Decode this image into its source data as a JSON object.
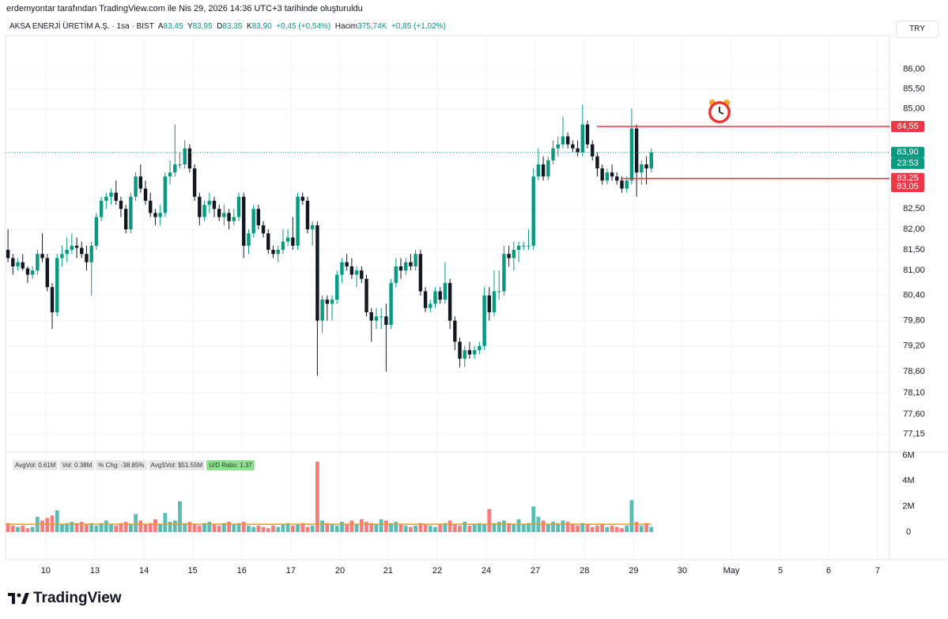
{
  "header": {
    "credit": "erdemyontar tarafından TradingView.com ile Nis 29, 2026 14:36 UTC+3 tarihinde oluşturuldu",
    "symbol": "AKSA ENERJİ ÜRETİM A.Ş. · 1sa · BIST",
    "open_label": "A",
    "open": "83,45",
    "high_label": "Y",
    "high": "83,95",
    "low_label": "D",
    "low": "83,35",
    "close_label": "K",
    "close": "83,90",
    "change": "+0,45 (+0,54%)",
    "volume_label": "Hacim",
    "volume": "375,74K",
    "volume_change": "+0,85 (+1,02%)",
    "currency": "TRY",
    "brand": "TradingView"
  },
  "indicator": [
    "AvgVol: 0.61M",
    "Vol: 0.38M",
    "% Chg: -38.85%",
    "AvgSVol: $51.55M",
    "U/D Ratio: 1.37"
  ],
  "chart_data": {
    "type": "candlestick",
    "log_scale": true,
    "grid": true,
    "up_color": "#089981",
    "down_color": "#131722",
    "volume_up_color": "#26a69a",
    "volume_down_color": "#ef5350",
    "volume_ma_color": "#ff9800",
    "xlim": [
      -0.5,
      179.5
    ],
    "xticks": [
      {
        "value": 7.7,
        "label": "10"
      },
      {
        "value": 17.7,
        "label": "13"
      },
      {
        "value": 27.7,
        "label": "14"
      },
      {
        "value": 37.6,
        "label": "15"
      },
      {
        "value": 47.6,
        "label": "16"
      },
      {
        "value": 57.6,
        "label": "17"
      },
      {
        "value": 67.6,
        "label": "20"
      },
      {
        "value": 77.4,
        "label": "21"
      },
      {
        "value": 87.4,
        "label": "22"
      },
      {
        "value": 97.4,
        "label": "24"
      },
      {
        "value": 107.4,
        "label": "27"
      },
      {
        "value": 117.4,
        "label": "28"
      },
      {
        "value": 127.4,
        "label": "29"
      },
      {
        "value": 137.3,
        "label": "30"
      },
      {
        "value": 147.3,
        "label": "May"
      },
      {
        "value": 157.3,
        "label": "5"
      },
      {
        "value": 167.1,
        "label": "6"
      },
      {
        "value": 177.1,
        "label": "7"
      }
    ],
    "ylim": [
      76.77,
      86.87
    ],
    "yticks": [
      {
        "value": 86,
        "label": "86,00"
      },
      {
        "value": 85.5,
        "label": "85,50"
      },
      {
        "value": 85,
        "label": "85,00"
      },
      {
        "value": 82.5,
        "label": "82,50"
      },
      {
        "value": 82,
        "label": "82,00"
      },
      {
        "value": 81.5,
        "label": "81,50"
      },
      {
        "value": 81,
        "label": "81,00"
      },
      {
        "value": 80.4,
        "label": "80,40"
      },
      {
        "value": 79.8,
        "label": "79,80"
      },
      {
        "value": 79.2,
        "label": "79,20"
      },
      {
        "value": 78.6,
        "label": "78,60"
      },
      {
        "value": 78.1,
        "label": "78,10"
      },
      {
        "value": 77.6,
        "label": "77,60"
      },
      {
        "value": 77.15,
        "label": "77,15"
      }
    ],
    "volume_ylim": [
      0,
      6
    ],
    "volume_ticks": [
      0,
      {
        "value": 2,
        "label": "2M"
      },
      {
        "value": 4,
        "label": "4M"
      },
      {
        "value": 6,
        "label": "6M"
      }
    ],
    "volume_ma": 0.61,
    "last_price": {
      "value": 83.9,
      "label": "83,90",
      "countdown": "23:53"
    },
    "alert_lines": [
      {
        "value": 84.55,
        "label": "84,55"
      },
      {
        "value": 83.25,
        "label": "83,25"
      }
    ],
    "alert_tags": [
      {
        "value": 83.05,
        "label": "83,05"
      }
    ],
    "ohlc": [
      [
        81.5,
        82.0,
        81.2,
        81.3
      ],
      [
        81.3,
        81.4,
        80.9,
        81.1
      ],
      [
        81.1,
        81.3,
        81.0,
        81.2
      ],
      [
        81.2,
        81.4,
        81.0,
        81.05
      ],
      [
        81.05,
        81.1,
        80.7,
        80.9
      ],
      [
        80.9,
        81.1,
        80.8,
        81.0
      ],
      [
        81.0,
        81.5,
        80.9,
        81.4
      ],
      [
        81.4,
        81.9,
        81.2,
        81.3
      ],
      [
        81.3,
        81.4,
        80.5,
        80.6
      ],
      [
        80.6,
        80.7,
        79.6,
        80.0
      ],
      [
        80.0,
        81.4,
        79.9,
        81.3
      ],
      [
        81.3,
        81.6,
        81.1,
        81.4
      ],
      [
        81.4,
        81.8,
        81.2,
        81.5
      ],
      [
        81.5,
        81.9,
        81.4,
        81.6
      ],
      [
        81.6,
        81.8,
        81.3,
        81.55
      ],
      [
        81.55,
        81.7,
        81.3,
        81.4
      ],
      [
        81.4,
        81.6,
        81.0,
        81.2
      ],
      [
        81.2,
        81.7,
        80.4,
        81.6
      ],
      [
        81.6,
        82.4,
        81.5,
        82.3
      ],
      [
        82.3,
        82.8,
        82.2,
        82.7
      ],
      [
        82.7,
        82.9,
        82.5,
        82.8
      ],
      [
        82.8,
        83.0,
        82.6,
        82.9
      ],
      [
        82.9,
        83.2,
        82.6,
        82.7
      ],
      [
        82.7,
        82.8,
        82.3,
        82.5
      ],
      [
        82.5,
        82.6,
        81.9,
        82.0
      ],
      [
        82.0,
        82.9,
        81.9,
        82.8
      ],
      [
        82.8,
        83.4,
        82.7,
        83.3
      ],
      [
        83.3,
        83.6,
        82.9,
        83.0
      ],
      [
        83.0,
        83.2,
        82.6,
        82.7
      ],
      [
        82.7,
        82.9,
        82.3,
        82.4
      ],
      [
        82.4,
        82.5,
        82.1,
        82.3
      ],
      [
        82.3,
        82.6,
        82.1,
        82.4
      ],
      [
        82.4,
        83.4,
        82.3,
        83.3
      ],
      [
        83.3,
        83.7,
        83.1,
        83.4
      ],
      [
        83.4,
        84.6,
        83.3,
        83.6
      ],
      [
        83.6,
        83.9,
        83.5,
        83.6
      ],
      [
        83.6,
        84.2,
        83.5,
        84.0
      ],
      [
        84.0,
        84.1,
        83.4,
        83.5
      ],
      [
        83.5,
        83.6,
        82.7,
        82.8
      ],
      [
        82.8,
        82.9,
        82.1,
        82.3
      ],
      [
        82.3,
        82.7,
        82.2,
        82.6
      ],
      [
        82.6,
        82.9,
        82.4,
        82.7
      ],
      [
        82.7,
        82.8,
        82.3,
        82.5
      ],
      [
        82.5,
        82.6,
        82.2,
        82.3
      ],
      [
        82.3,
        82.6,
        82.1,
        82.4
      ],
      [
        82.4,
        82.5,
        82.0,
        82.2
      ],
      [
        82.2,
        82.5,
        82.1,
        82.3
      ],
      [
        82.3,
        82.9,
        82.2,
        82.8
      ],
      [
        82.8,
        82.9,
        81.3,
        81.6
      ],
      [
        81.6,
        82.0,
        81.4,
        81.9
      ],
      [
        81.9,
        82.6,
        81.8,
        82.5
      ],
      [
        82.5,
        82.6,
        82.0,
        82.1
      ],
      [
        82.1,
        82.2,
        81.8,
        81.9
      ],
      [
        81.9,
        82.0,
        81.4,
        81.5
      ],
      [
        81.5,
        81.6,
        81.3,
        81.4
      ],
      [
        81.4,
        81.6,
        81.2,
        81.5
      ],
      [
        81.5,
        82.0,
        81.4,
        81.7
      ],
      [
        81.7,
        82.0,
        81.6,
        81.8
      ],
      [
        81.8,
        82.3,
        81.5,
        81.6
      ],
      [
        81.6,
        82.9,
        81.5,
        82.8
      ],
      [
        82.8,
        82.9,
        82.6,
        82.7
      ],
      [
        82.7,
        82.8,
        81.9,
        82.0
      ],
      [
        82.0,
        82.2,
        81.6,
        82.1
      ],
      [
        82.1,
        82.2,
        78.5,
        79.8
      ],
      [
        79.8,
        80.4,
        79.5,
        80.3
      ],
      [
        80.3,
        80.4,
        79.8,
        80.2
      ],
      [
        80.2,
        80.4,
        79.8,
        80.3
      ],
      [
        80.3,
        81.0,
        80.2,
        80.9
      ],
      [
        80.9,
        81.3,
        80.7,
        81.2
      ],
      [
        81.2,
        81.4,
        81.0,
        81.1
      ],
      [
        81.1,
        81.3,
        80.8,
        80.9
      ],
      [
        80.9,
        81.1,
        80.6,
        81.0
      ],
      [
        81.0,
        81.1,
        80.7,
        80.8
      ],
      [
        80.8,
        80.9,
        79.9,
        80.0
      ],
      [
        80.0,
        80.1,
        79.3,
        79.8
      ],
      [
        79.8,
        80.1,
        79.6,
        79.9
      ],
      [
        79.9,
        80.1,
        79.6,
        79.9
      ],
      [
        79.9,
        80.2,
        78.6,
        79.7
      ],
      [
        79.7,
        80.8,
        79.6,
        80.7
      ],
      [
        80.7,
        81.3,
        80.6,
        81.1
      ],
      [
        81.1,
        81.3,
        80.8,
        81.0
      ],
      [
        81.0,
        81.3,
        80.9,
        81.2
      ],
      [
        81.2,
        81.4,
        81.0,
        81.1
      ],
      [
        81.1,
        81.5,
        81.0,
        81.4
      ],
      [
        81.4,
        81.5,
        80.4,
        80.5
      ],
      [
        80.5,
        80.6,
        80.0,
        80.1
      ],
      [
        80.1,
        80.3,
        80.0,
        80.2
      ],
      [
        80.2,
        80.6,
        80.1,
        80.5
      ],
      [
        80.5,
        80.6,
        80.2,
        80.3
      ],
      [
        80.3,
        81.2,
        80.2,
        80.7
      ],
      [
        80.7,
        80.8,
        79.6,
        79.8
      ],
      [
        79.8,
        79.9,
        79.1,
        79.3
      ],
      [
        79.3,
        79.4,
        78.7,
        78.9
      ],
      [
        78.9,
        79.2,
        78.7,
        79.1
      ],
      [
        79.1,
        79.3,
        78.9,
        79.0
      ],
      [
        79.0,
        79.2,
        78.9,
        79.1
      ],
      [
        79.1,
        79.3,
        79.0,
        79.2
      ],
      [
        79.2,
        80.6,
        79.1,
        80.4
      ],
      [
        80.4,
        80.6,
        79.8,
        80.0
      ],
      [
        80.0,
        81.0,
        79.9,
        80.5
      ],
      [
        80.5,
        81.0,
        80.3,
        80.5
      ],
      [
        80.5,
        81.6,
        80.4,
        81.4
      ],
      [
        81.4,
        81.6,
        81.1,
        81.3
      ],
      [
        81.3,
        81.7,
        81.0,
        81.5
      ],
      [
        81.5,
        81.7,
        81.2,
        81.6
      ],
      [
        81.6,
        81.7,
        81.5,
        81.6
      ],
      [
        81.6,
        82.0,
        81.5,
        81.6
      ],
      [
        81.6,
        83.5,
        81.5,
        83.3
      ],
      [
        83.3,
        84.0,
        83.2,
        83.6
      ],
      [
        83.6,
        83.8,
        83.2,
        83.3
      ],
      [
        83.3,
        83.8,
        83.2,
        83.7
      ],
      [
        83.7,
        84.2,
        83.6,
        84.0
      ],
      [
        84.0,
        84.3,
        83.8,
        84.1
      ],
      [
        84.1,
        84.8,
        84.0,
        84.3
      ],
      [
        84.3,
        84.4,
        84.0,
        84.1
      ],
      [
        84.1,
        84.2,
        83.9,
        84.0
      ],
      [
        84.0,
        84.2,
        83.8,
        83.9
      ],
      [
        83.9,
        85.1,
        83.8,
        84.6
      ],
      [
        84.6,
        84.7,
        84.0,
        84.1
      ],
      [
        84.1,
        84.2,
        83.7,
        83.8
      ],
      [
        83.8,
        83.9,
        83.3,
        83.5
      ],
      [
        83.5,
        83.6,
        83.1,
        83.2
      ],
      [
        83.2,
        83.5,
        83.1,
        83.4
      ],
      [
        83.4,
        83.6,
        83.2,
        83.3
      ],
      [
        83.3,
        83.4,
        83.1,
        83.2
      ],
      [
        83.2,
        83.3,
        82.9,
        83.0
      ],
      [
        83.0,
        83.3,
        82.9,
        83.2
      ],
      [
        83.2,
        85.0,
        83.1,
        84.5
      ],
      [
        84.5,
        84.6,
        82.8,
        83.4
      ],
      [
        83.4,
        83.7,
        83.1,
        83.6
      ],
      [
        83.6,
        83.8,
        83.1,
        83.5
      ],
      [
        83.5,
        84.0,
        83.4,
        83.9
      ]
    ],
    "volume": [
      0.7,
      0.5,
      0.4,
      0.5,
      0.3,
      0.4,
      1.2,
      0.9,
      1.1,
      1.3,
      1.7,
      0.6,
      0.7,
      0.8,
      0.7,
      0.8,
      0.6,
      0.7,
      0.5,
      0.7,
      0.9,
      0.6,
      0.5,
      0.7,
      0.8,
      0.6,
      1.4,
      0.9,
      0.6,
      0.7,
      1.0,
      0.6,
      1.5,
      0.8,
      0.9,
      2.4,
      0.7,
      0.8,
      0.6,
      0.5,
      0.7,
      0.8,
      0.6,
      0.5,
      0.7,
      0.8,
      0.6,
      0.7,
      0.8,
      0.5,
      0.4,
      0.5,
      0.4,
      0.3,
      0.5,
      0.4,
      0.6,
      0.7,
      0.5,
      0.6,
      0.7,
      0.4,
      0.5,
      5.5,
      0.9,
      0.7,
      0.6,
      0.5,
      0.8,
      0.6,
      0.9,
      0.6,
      1.0,
      0.8,
      0.7,
      0.6,
      1.0,
      0.9,
      0.7,
      0.8,
      0.6,
      0.5,
      0.4,
      0.5,
      0.7,
      0.6,
      0.5,
      0.4,
      0.6,
      0.7,
      0.9,
      0.6,
      0.5,
      0.8,
      0.5,
      0.6,
      0.7,
      0.6,
      1.8,
      0.7,
      0.8,
      0.9,
      0.7,
      0.6,
      1.0,
      0.6,
      0.7,
      2.0,
      1.2,
      0.9,
      0.6,
      0.8,
      0.7,
      0.9,
      0.8,
      0.6,
      0.5,
      0.7,
      0.6,
      0.4,
      0.5,
      0.6,
      0.4,
      0.5,
      0.4,
      0.3,
      0.5,
      2.5,
      0.8,
      0.5,
      0.7,
      0.4
    ]
  }
}
